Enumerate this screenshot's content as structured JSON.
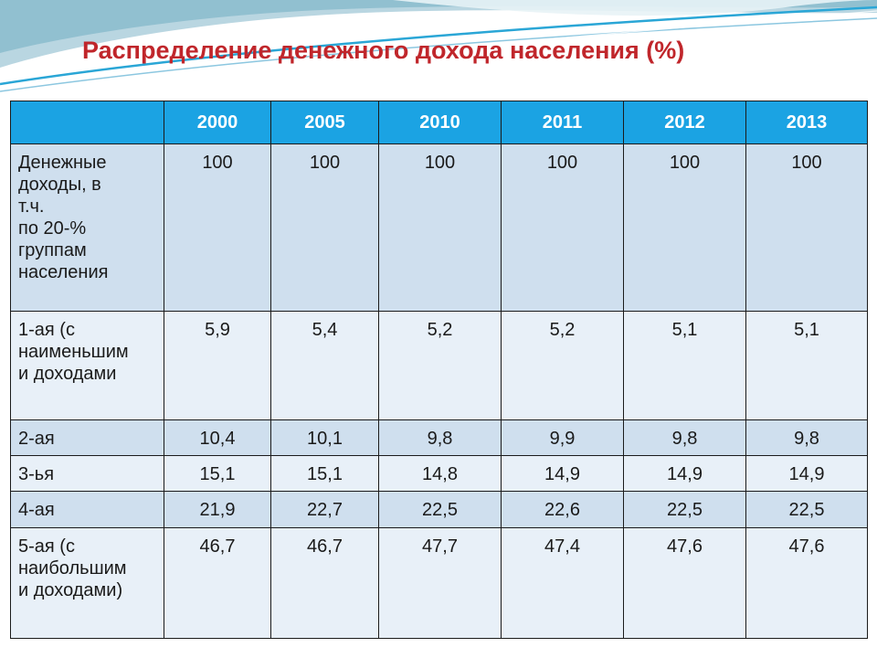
{
  "slide": {
    "title": "Распределение денежного дохода населения (%)"
  },
  "table": {
    "columns": [
      "",
      "2000",
      "2005",
      "2010",
      "2011",
      "2012",
      "2013"
    ],
    "rows": [
      {
        "label_lines": [
          "Денежные",
          "доходы, в",
          "т.ч.",
          "по 20-%",
          "группам",
          "населения"
        ],
        "values": [
          "100",
          "100",
          "100",
          "100",
          "100",
          "100"
        ]
      },
      {
        "label_lines": [
          "1-ая (с",
          "наименьшим",
          "и доходами"
        ],
        "values": [
          "5,9",
          "5,4",
          "5,2",
          "5,2",
          "5,1",
          "5,1"
        ]
      },
      {
        "label_lines": [
          "2-ая"
        ],
        "values": [
          "10,4",
          "10,1",
          "9,8",
          "9,9",
          "9,8",
          "9,8"
        ]
      },
      {
        "label_lines": [
          "3-ья"
        ],
        "values": [
          "15,1",
          "15,1",
          "14,8",
          "14,9",
          "14,9",
          "14,9"
        ]
      },
      {
        "label_lines": [
          "4-ая"
        ],
        "values": [
          "21,9",
          "22,7",
          "22,5",
          "22,6",
          "22,5",
          "22,5"
        ]
      },
      {
        "label_lines": [
          "5-ая (с",
          "наибольшим",
          "и доходами)"
        ],
        "values": [
          "46,7",
          "46,7",
          "47,7",
          "47,4",
          "47,6",
          "47,6"
        ]
      }
    ]
  },
  "colors": {
    "title": "#c0262b",
    "header_bg": "#1ba3e3",
    "row_band_dark": "#cfdfee",
    "row_band_light": "#e8f0f8",
    "wave_accent": "#2aa6d6"
  }
}
